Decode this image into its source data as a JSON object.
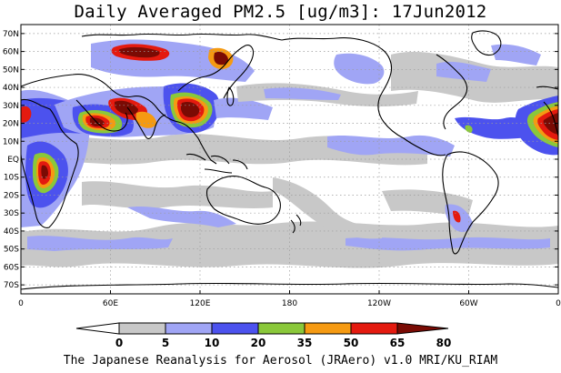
{
  "title": "Daily Averaged PM2.5 [ug/m3]: 17Jun2012",
  "credit": "The Japanese Reanalysis for Aerosol (JRAero) v1.0 MRI/KU_RIAM",
  "map": {
    "lon_range": [
      0,
      360
    ],
    "lat_range": [
      -75,
      75
    ],
    "lat_ticks": [
      {
        "value": 70,
        "label": "70N"
      },
      {
        "value": 60,
        "label": "60N"
      },
      {
        "value": 50,
        "label": "50N"
      },
      {
        "value": 40,
        "label": "40N"
      },
      {
        "value": 30,
        "label": "30N"
      },
      {
        "value": 20,
        "label": "20N"
      },
      {
        "value": 10,
        "label": "10N"
      },
      {
        "value": 0,
        "label": "EQ"
      },
      {
        "value": -10,
        "label": "10S"
      },
      {
        "value": -20,
        "label": "20S"
      },
      {
        "value": -30,
        "label": "30S"
      },
      {
        "value": -40,
        "label": "40S"
      },
      {
        "value": -50,
        "label": "50S"
      },
      {
        "value": -60,
        "label": "60S"
      },
      {
        "value": -70,
        "label": "70S"
      }
    ],
    "lon_ticks": [
      {
        "value": 0,
        "label": "0"
      },
      {
        "value": 60,
        "label": "60E"
      },
      {
        "value": 120,
        "label": "120E"
      },
      {
        "value": 180,
        "label": "180"
      },
      {
        "value": 240,
        "label": "120W"
      },
      {
        "value": 300,
        "label": "60W"
      },
      {
        "value": 360,
        "label": "0"
      }
    ]
  },
  "legend": {
    "levels": [
      {
        "label": "0",
        "color": "#ffffff"
      },
      {
        "label": "5",
        "color": "#c8c8c8"
      },
      {
        "label": "10",
        "color": "#a0a5f5"
      },
      {
        "label": "20",
        "color": "#4c52ee"
      },
      {
        "label": "35",
        "color": "#8ac83a"
      },
      {
        "label": "50",
        "color": "#f59a12"
      },
      {
        "label": "65",
        "color": "#e41a0f"
      },
      {
        "label": "80",
        "color": "#7a0b04"
      }
    ]
  },
  "colors": {
    "land": "#000000",
    "grid": "#9a9a9a"
  }
}
